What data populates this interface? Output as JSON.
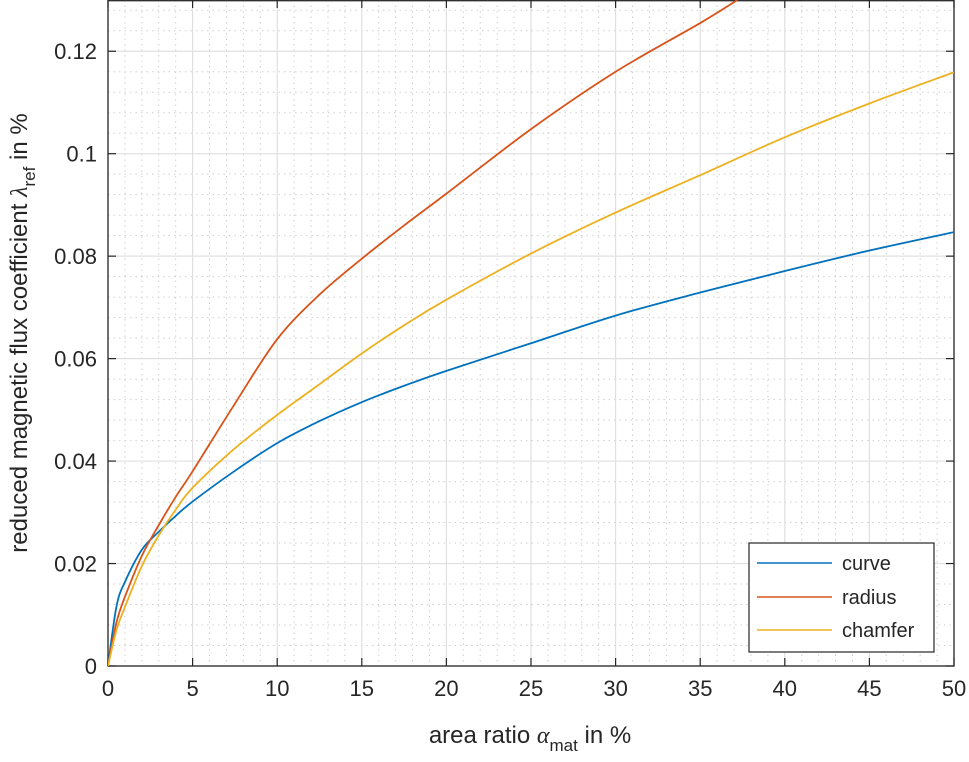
{
  "chart_data": {
    "type": "line",
    "xlabel": {
      "pre": "area ratio ",
      "sym": "α",
      "sub": "mat",
      "post": " in %"
    },
    "ylabel": {
      "pre": "reduced magnetic flux coefficient ",
      "sym": "λ",
      "sub": "ref",
      "post": " in %"
    },
    "xlim": [
      0,
      50
    ],
    "ylim": [
      0,
      0.13
    ],
    "x_ticks": [
      0,
      5,
      10,
      15,
      20,
      25,
      30,
      35,
      40,
      45,
      50
    ],
    "x_tick_labels": [
      "0",
      "5",
      "10",
      "15",
      "20",
      "25",
      "30",
      "35",
      "40",
      "45",
      "50"
    ],
    "y_ticks": [
      0,
      0.02,
      0.04,
      0.06,
      0.08,
      0.1,
      0.12
    ],
    "y_tick_labels": [
      "0",
      "0.02",
      "0.04",
      "0.06",
      "0.08",
      "0.1",
      "0.12"
    ],
    "grid": "major and minor",
    "legend_position": "bottom-right",
    "series": [
      {
        "name": "curve",
        "color": "#0072BD",
        "x": [
          0,
          0.5,
          1,
          2,
          3,
          4,
          5,
          7.5,
          10,
          12.5,
          15,
          17.5,
          20,
          25,
          30,
          35,
          40,
          45,
          50
        ],
        "y": [
          0,
          0.0116,
          0.0164,
          0.0227,
          0.0262,
          0.0293,
          0.0321,
          0.0381,
          0.0435,
          0.0478,
          0.0515,
          0.0547,
          0.0576,
          0.063,
          0.0684,
          0.0729,
          0.0771,
          0.0811,
          0.0847
        ]
      },
      {
        "name": "radius",
        "color": "#D95319",
        "x": [
          0,
          0.5,
          1,
          2,
          3,
          4,
          5,
          7.5,
          10,
          12.5,
          15,
          17.5,
          20,
          25,
          30,
          35,
          37.2
        ],
        "y": [
          0,
          0.0085,
          0.0135,
          0.0215,
          0.0275,
          0.033,
          0.038,
          0.0512,
          0.0638,
          0.0725,
          0.0795,
          0.086,
          0.0922,
          0.1048,
          0.116,
          0.1255,
          0.13
        ]
      },
      {
        "name": "chamfer",
        "color": "#EDB120",
        "x": [
          0,
          0.5,
          1,
          2,
          3,
          4,
          5,
          7.5,
          10,
          12.5,
          15,
          17.5,
          20,
          25,
          30,
          35,
          40,
          45,
          50
        ],
        "y": [
          0,
          0.007,
          0.0115,
          0.0195,
          0.0255,
          0.0305,
          0.0348,
          0.0425,
          0.049,
          0.055,
          0.061,
          0.0665,
          0.0715,
          0.0805,
          0.0885,
          0.0958,
          0.1032,
          0.1098,
          0.1159
        ]
      }
    ]
  }
}
